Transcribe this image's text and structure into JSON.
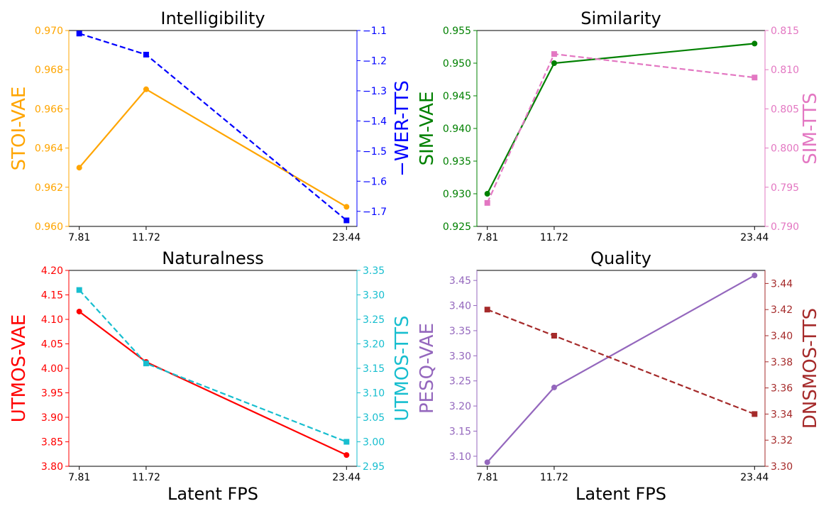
{
  "chart_data": [
    {
      "type": "line",
      "title": "Intelligibility",
      "xlabel": "",
      "x": [
        7.81,
        11.72,
        23.44
      ],
      "xticks": [
        "7.81",
        "11.72",
        "23.44"
      ],
      "left": {
        "name": "STOI-VAE",
        "color": "#ffa500",
        "marker": "circle",
        "dash": false,
        "values": [
          0.963,
          0.967,
          0.961
        ],
        "ylim": [
          0.96,
          0.97
        ],
        "ticks": [
          "0.960",
          "0.962",
          "0.964",
          "0.966",
          "0.968",
          "0.970"
        ]
      },
      "right": {
        "name": "−WER-TTS",
        "color": "#0000ff",
        "marker": "square",
        "dash": true,
        "values": [
          -1.11,
          -1.18,
          -1.73
        ],
        "ylim": [
          -1.75,
          -1.1
        ],
        "ticks": [
          "−1.7",
          "−1.6",
          "−1.5",
          "−1.4",
          "−1.3",
          "−1.2",
          "−1.1"
        ]
      }
    },
    {
      "type": "line",
      "title": "Similarity",
      "xlabel": "",
      "x": [
        7.81,
        11.72,
        23.44
      ],
      "xticks": [
        "7.81",
        "11.72",
        "23.44"
      ],
      "left": {
        "name": "SIM-VAE",
        "color": "#008000",
        "marker": "circle",
        "dash": false,
        "values": [
          0.93,
          0.95,
          0.953
        ],
        "ylim": [
          0.925,
          0.955
        ],
        "ticks": [
          "0.925",
          "0.930",
          "0.935",
          "0.940",
          "0.945",
          "0.950",
          "0.955"
        ]
      },
      "right": {
        "name": "SIM-TTS",
        "color": "#e377c2",
        "marker": "square",
        "dash": true,
        "values": [
          0.793,
          0.812,
          0.809
        ],
        "ylim": [
          0.79,
          0.815
        ],
        "ticks": [
          "0.790",
          "0.795",
          "0.800",
          "0.805",
          "0.810",
          "0.815"
        ]
      }
    },
    {
      "type": "line",
      "title": "Naturalness",
      "xlabel": "Latent FPS",
      "x": [
        7.81,
        11.72,
        23.44
      ],
      "xticks": [
        "7.81",
        "11.72",
        "23.44"
      ],
      "left": {
        "name": "UTMOS-VAE",
        "color": "#ff0000",
        "marker": "circle",
        "dash": false,
        "values": [
          4.116,
          4.013,
          3.823
        ],
        "ylim": [
          3.8,
          4.2
        ],
        "ticks": [
          "3.80",
          "3.85",
          "3.90",
          "3.95",
          "4.00",
          "4.05",
          "4.10",
          "4.15",
          "4.20"
        ]
      },
      "right": {
        "name": "UTMOS-TTS",
        "color": "#17becf",
        "marker": "square",
        "dash": true,
        "values": [
          3.31,
          3.16,
          3.0
        ],
        "ylim": [
          2.95,
          3.35
        ],
        "ticks": [
          "2.95",
          "3.00",
          "3.05",
          "3.10",
          "3.15",
          "3.20",
          "3.25",
          "3.30",
          "3.35"
        ]
      }
    },
    {
      "type": "line",
      "title": "Quality",
      "xlabel": "Latent FPS",
      "x": [
        7.81,
        11.72,
        23.44
      ],
      "xticks": [
        "7.81",
        "11.72",
        "23.44"
      ],
      "left": {
        "name": "PESQ-VAE",
        "color": "#9467bd",
        "marker": "circle",
        "dash": false,
        "values": [
          3.088,
          3.237,
          3.46
        ],
        "ylim": [
          3.08,
          3.47
        ],
        "ticks": [
          "3.10",
          "3.15",
          "3.20",
          "3.25",
          "3.30",
          "3.35",
          "3.40",
          "3.45"
        ]
      },
      "right": {
        "name": "DNSMOS-TTS",
        "color": "#a52a2a",
        "marker": "square",
        "dash": true,
        "values": [
          3.42,
          3.4,
          3.34
        ],
        "ylim": [
          3.3,
          3.45
        ],
        "ticks": [
          "3.30",
          "3.32",
          "3.34",
          "3.36",
          "3.38",
          "3.40",
          "3.42",
          "3.44"
        ]
      }
    }
  ]
}
